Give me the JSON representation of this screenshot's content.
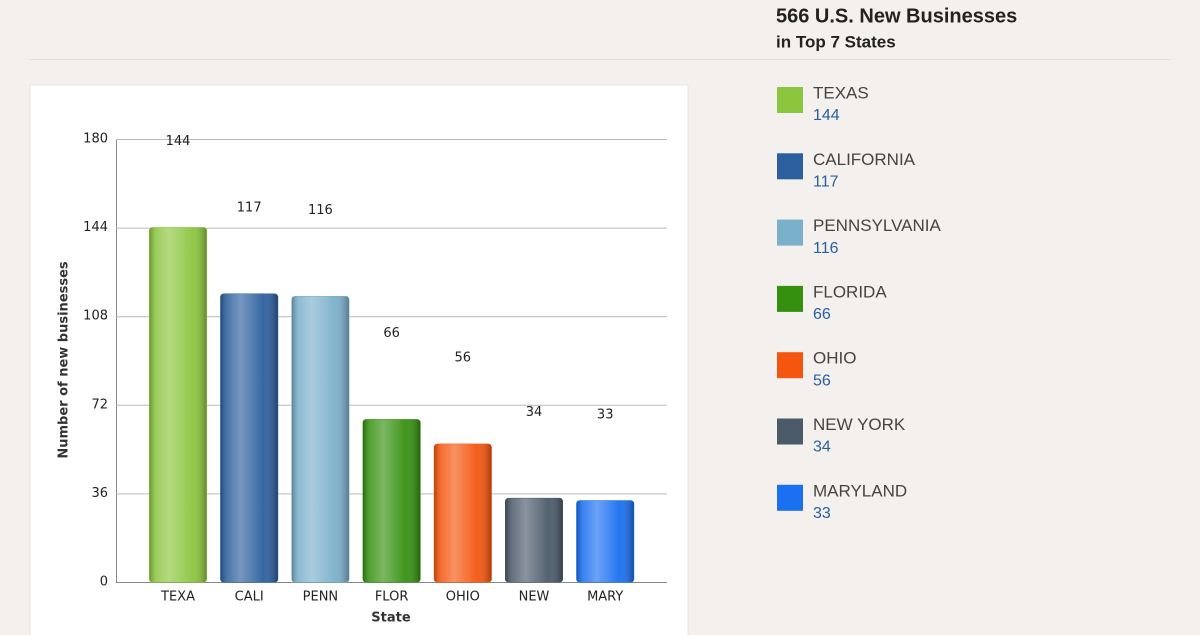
{
  "chart_data": {
    "type": "bar",
    "title": "566 U.S. New Businesses",
    "subtitle": "in Top 7 States",
    "x_label": "State",
    "y_label": "Number of new businesses",
    "categories": [
      "TEXA",
      "CALI",
      "PENN",
      "FLOR",
      "OHIO",
      "NEW",
      "MARY"
    ],
    "values": [
      144,
      117,
      116,
      66,
      56,
      34,
      33
    ],
    "colors": [
      "#8cc63f",
      "#2c5f9e",
      "#7bb0cb",
      "#35900f",
      "#f4560f",
      "#4b5a69",
      "#1a70f0"
    ],
    "legend_labels": [
      "TEXAS",
      "CALIFORNIA",
      "PENNSYLVANIA",
      "FLORIDA",
      "OHIO",
      "NEW YORK",
      "MARYLAND"
    ],
    "ylim": [
      0,
      180
    ],
    "yticks": [
      0,
      36,
      72,
      108,
      144,
      180
    ],
    "grid": true
  }
}
